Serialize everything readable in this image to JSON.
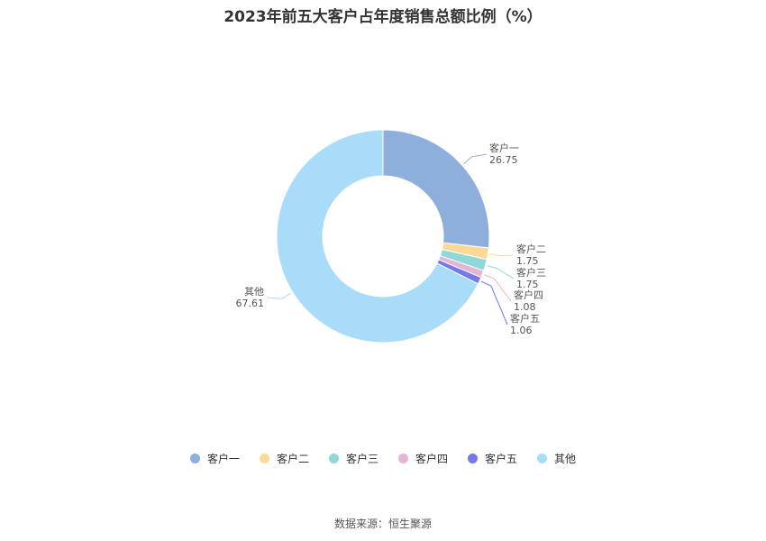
{
  "chart_data": {
    "type": "pie",
    "title": "2023年前五大客户占年度销售总额比例（%）",
    "categories": [
      "客户一",
      "客户二",
      "客户三",
      "客户四",
      "客户五",
      "其他"
    ],
    "values": [
      26.75,
      1.75,
      1.75,
      1.08,
      1.06,
      67.61
    ],
    "value_labels": [
      "26.75",
      "1.75",
      "1.75",
      "1.08",
      "1.06",
      "67.61"
    ],
    "colors": [
      "#8eaedb",
      "#fcd996",
      "#8fd8d8",
      "#e4b4d8",
      "#7479ec",
      "#a8dcf8"
    ],
    "legend_position": "bottom"
  },
  "source": "数据来源：恒生聚源"
}
